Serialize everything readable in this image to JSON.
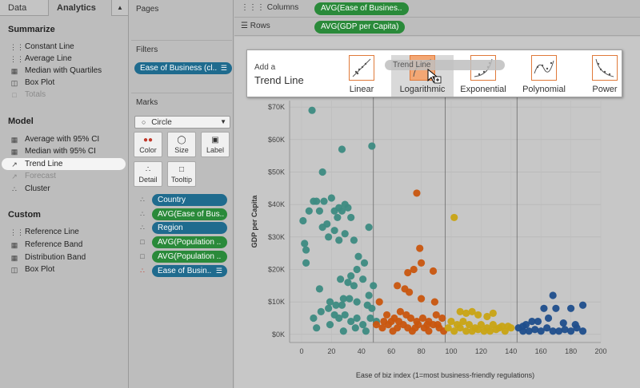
{
  "left_panel": {
    "tabs": [
      "Data",
      "Analytics"
    ],
    "summarize": {
      "title": "Summarize",
      "items": [
        {
          "label": "Constant Line",
          "icon": "constant-line-icon"
        },
        {
          "label": "Average Line",
          "icon": "average-line-icon"
        },
        {
          "label": "Median with Quartiles",
          "icon": "median-quartiles-icon"
        },
        {
          "label": "Box Plot",
          "icon": "box-plot-icon"
        },
        {
          "label": "Totals",
          "icon": "totals-icon",
          "disabled": true
        }
      ]
    },
    "model": {
      "title": "Model",
      "items": [
        {
          "label": "Average with 95% CI",
          "icon": "average-ci-icon"
        },
        {
          "label": "Median with 95% CI",
          "icon": "median-ci-icon"
        },
        {
          "label": "Trend Line",
          "icon": "trend-line-icon",
          "selected": true
        },
        {
          "label": "Forecast",
          "icon": "forecast-icon",
          "disabled": true
        },
        {
          "label": "Cluster",
          "icon": "cluster-icon"
        }
      ]
    },
    "custom": {
      "title": "Custom",
      "items": [
        {
          "label": "Reference Line",
          "icon": "reference-line-icon"
        },
        {
          "label": "Reference Band",
          "icon": "reference-band-icon"
        },
        {
          "label": "Distribution Band",
          "icon": "distribution-band-icon"
        },
        {
          "label": "Box Plot",
          "icon": "box-plot-icon"
        }
      ]
    }
  },
  "cards": {
    "pages": "Pages",
    "filters": "Filters",
    "filter_pill": "Ease of Business (cl..",
    "marks": "Marks",
    "mark_type": "Circle",
    "buttons": [
      "Color",
      "Size",
      "Label",
      "Detail",
      "Tooltip"
    ],
    "encodings": [
      {
        "label": "Country",
        "color": "blue"
      },
      {
        "label": "AVG(Ease of Bus..",
        "color": "green"
      },
      {
        "label": "Region",
        "color": "blue"
      },
      {
        "label": "AVG(Population ..",
        "color": "green"
      },
      {
        "label": "AVG(Population ..",
        "color": "green"
      },
      {
        "label": "Ease of Busin..",
        "color": "blue"
      }
    ]
  },
  "shelves": {
    "columns_label": "Columns",
    "columns_pill": "AVG(Ease of Busines..",
    "rows_label": "Rows",
    "rows_pill": "AVG(GDP per Capita)"
  },
  "trend_popup": {
    "add_label": "Add a",
    "title": "Trend Line",
    "options": [
      "Linear",
      "Logarithmic",
      "Exponential",
      "Polynomial",
      "Power"
    ],
    "highlighted": "Logarithmic",
    "drag_label": "Trend Line"
  },
  "chart_data": {
    "type": "scatter",
    "xlabel": "Ease of biz index (1=most business-friendly regulations)",
    "ylabel": "GDP per Capita",
    "xlim": [
      -8,
      200
    ],
    "ylim": [
      -2500,
      72000
    ],
    "x_ticks": [
      0,
      20,
      40,
      60,
      80,
      100,
      120,
      140,
      160,
      180,
      200
    ],
    "y_ticks": [
      0,
      10000,
      20000,
      30000,
      40000,
      50000,
      60000,
      70000
    ],
    "y_tick_labels": [
      "$0K",
      "$10K",
      "$20K",
      "$30K",
      "$40K",
      "$50K",
      "$60K",
      "$70K"
    ],
    "band_lines": [
      48,
      96,
      144
    ],
    "colors": {
      "teal": "#3d8b82",
      "orange": "#c9560f",
      "gold": "#c9a414",
      "navy": "#1f4e8c"
    },
    "series": [
      {
        "color": "teal",
        "points": [
          [
            7,
            69000
          ],
          [
            27,
            57000
          ],
          [
            47,
            58000
          ],
          [
            14,
            50000
          ],
          [
            1,
            35000
          ],
          [
            2,
            28000
          ],
          [
            3,
            26000
          ],
          [
            3,
            22000
          ],
          [
            5,
            38000
          ],
          [
            8,
            41000
          ],
          [
            10,
            41000
          ],
          [
            12,
            38000
          ],
          [
            15,
            41000
          ],
          [
            17,
            34000
          ],
          [
            20,
            42000
          ],
          [
            22,
            38000
          ],
          [
            24,
            36000
          ],
          [
            25,
            39000
          ],
          [
            27,
            38000
          ],
          [
            29,
            40000
          ],
          [
            31,
            39000
          ],
          [
            33,
            36000
          ],
          [
            14,
            33000
          ],
          [
            18,
            30000
          ],
          [
            22,
            32000
          ],
          [
            25,
            29000
          ],
          [
            29,
            31000
          ],
          [
            35,
            29000
          ],
          [
            45,
            33000
          ],
          [
            38,
            24000
          ],
          [
            42,
            22000
          ],
          [
            37,
            20000
          ],
          [
            33,
            18000
          ],
          [
            26,
            17000
          ],
          [
            31,
            16000
          ],
          [
            35,
            15000
          ],
          [
            41,
            17000
          ],
          [
            28,
            11000
          ],
          [
            12,
            14000
          ],
          [
            19,
            10000
          ],
          [
            23,
            9000
          ],
          [
            27,
            9000
          ],
          [
            32,
            11000
          ],
          [
            37,
            10000
          ],
          [
            44,
            9000
          ],
          [
            48,
            15000
          ],
          [
            45,
            12000
          ],
          [
            8,
            5000
          ],
          [
            13,
            7000
          ],
          [
            18,
            8000
          ],
          [
            22,
            6000
          ],
          [
            25,
            5000
          ],
          [
            29,
            6000
          ],
          [
            33,
            4000
          ],
          [
            37,
            5000
          ],
          [
            41,
            3000
          ],
          [
            10,
            2000
          ],
          [
            19,
            3000
          ],
          [
            28,
            1000
          ],
          [
            36,
            2000
          ],
          [
            43,
            1000
          ],
          [
            46,
            5000
          ],
          [
            47,
            8000
          ],
          [
            50,
            4000
          ]
        ]
      },
      {
        "color": "orange",
        "points": [
          [
            77,
            43500
          ],
          [
            79,
            26500
          ],
          [
            80,
            22000
          ],
          [
            75,
            20000
          ],
          [
            71,
            19000
          ],
          [
            88,
            19500
          ],
          [
            64,
            15000
          ],
          [
            69,
            14000
          ],
          [
            72,
            13000
          ],
          [
            80,
            11000
          ],
          [
            89,
            10000
          ],
          [
            52,
            10000
          ],
          [
            57,
            6000
          ],
          [
            62,
            5000
          ],
          [
            66,
            7000
          ],
          [
            70,
            6000
          ],
          [
            73,
            5000
          ],
          [
            77,
            4000
          ],
          [
            81,
            5000
          ],
          [
            85,
            4000
          ],
          [
            90,
            6000
          ],
          [
            94,
            5000
          ],
          [
            50,
            3000
          ],
          [
            54,
            2000
          ],
          [
            58,
            3000
          ],
          [
            61,
            1000
          ],
          [
            64,
            2000
          ],
          [
            68,
            3000
          ],
          [
            71,
            2000
          ],
          [
            74,
            1000
          ],
          [
            78,
            3000
          ],
          [
            82,
            2000
          ],
          [
            85,
            1000
          ],
          [
            88,
            3000
          ],
          [
            92,
            2000
          ],
          [
            95,
            1000
          ],
          [
            55,
            4000
          ],
          [
            60,
            4000
          ],
          [
            65,
            4000
          ],
          [
            76,
            2000
          ],
          [
            84,
            3000
          ],
          [
            91,
            3000
          ]
        ]
      },
      {
        "color": "gold",
        "points": [
          [
            102,
            36000
          ],
          [
            106,
            7000
          ],
          [
            110,
            6500
          ],
          [
            114,
            7000
          ],
          [
            118,
            6000
          ],
          [
            124,
            5500
          ],
          [
            128,
            6500
          ],
          [
            100,
            4000
          ],
          [
            104,
            3000
          ],
          [
            108,
            4000
          ],
          [
            112,
            3000
          ],
          [
            116,
            2000
          ],
          [
            120,
            3000
          ],
          [
            124,
            2000
          ],
          [
            128,
            3000
          ],
          [
            132,
            2000
          ],
          [
            136,
            1000
          ],
          [
            140,
            2000
          ],
          [
            98,
            2000
          ],
          [
            102,
            1000
          ],
          [
            106,
            2000
          ],
          [
            110,
            1000
          ],
          [
            114,
            1000
          ],
          [
            118,
            1500
          ],
          [
            122,
            1000
          ],
          [
            126,
            1000
          ],
          [
            130,
            1500
          ],
          [
            134,
            2500
          ],
          [
            138,
            2500
          ]
        ]
      },
      {
        "color": "navy",
        "points": [
          [
            168,
            12000
          ],
          [
            180,
            8000
          ],
          [
            170,
            8000
          ],
          [
            188,
            9000
          ],
          [
            162,
            8000
          ],
          [
            150,
            3000
          ],
          [
            154,
            4000
          ],
          [
            158,
            4000
          ],
          [
            145,
            2000
          ],
          [
            148,
            1000
          ],
          [
            152,
            1000
          ],
          [
            156,
            1500
          ],
          [
            160,
            1000
          ],
          [
            164,
            2000
          ],
          [
            168,
            1000
          ],
          [
            172,
            1000
          ],
          [
            176,
            1500
          ],
          [
            180,
            1000
          ],
          [
            184,
            2000
          ],
          [
            188,
            1000
          ],
          [
            165,
            5000
          ],
          [
            175,
            3500
          ],
          [
            183,
            3000
          ],
          [
            148,
            2500
          ]
        ]
      }
    ]
  }
}
